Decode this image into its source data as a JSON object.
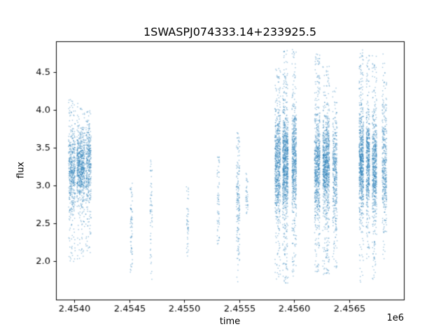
{
  "chart_data": {
    "type": "scatter",
    "title": "1SWASPJ074333.14+233925.5",
    "xlabel": "time",
    "ylabel": "flux",
    "x_offset_text": "1e6",
    "xlim": [
      2.453835,
      2.456997
    ],
    "ylim": [
      1.49,
      4.91
    ],
    "xticks": [
      2.454,
      2.4545,
      2.455,
      2.4555,
      2.456,
      2.4565
    ],
    "xtick_labels": [
      "2.4540",
      "2.4545",
      "2.4550",
      "2.4555",
      "2.4560",
      "2.4565"
    ],
    "yticks": [
      2.0,
      2.5,
      3.0,
      3.5,
      4.0,
      4.5
    ],
    "ytick_labels": [
      "2.0",
      "2.5",
      "3.0",
      "3.5",
      "4.0",
      "4.5"
    ],
    "grid": false,
    "legend": null,
    "marker_color": "#1f77b4",
    "marker_alpha": 0.45,
    "marker_size": 1.4,
    "seed": 7,
    "clusters": [
      {
        "t": 2.45398,
        "w": 6e-05,
        "n": 500,
        "mean": 3.2,
        "sigma": 0.28,
        "fmin": 1.95,
        "fmax": 4.15,
        "tail": 0.18
      },
      {
        "t": 2.45406,
        "w": 7e-05,
        "n": 700,
        "mean": 3.25,
        "sigma": 0.25,
        "fmin": 2.0,
        "fmax": 4.1,
        "tail": 0.15
      },
      {
        "t": 2.45413,
        "w": 5e-05,
        "n": 400,
        "mean": 3.3,
        "sigma": 0.28,
        "fmin": 2.1,
        "fmax": 4.0,
        "tail": 0.15
      },
      {
        "t": 2.45452,
        "w": 2e-05,
        "n": 70,
        "mean": 2.5,
        "sigma": 0.3,
        "fmin": 1.85,
        "fmax": 3.05,
        "tail": 0.55
      },
      {
        "t": 2.4547,
        "w": 2e-05,
        "n": 60,
        "mean": 2.6,
        "sigma": 0.35,
        "fmin": 1.75,
        "fmax": 3.4,
        "tail": 0.55
      },
      {
        "t": 2.45503,
        "w": 2e-05,
        "n": 45,
        "mean": 2.55,
        "sigma": 0.25,
        "fmin": 2.05,
        "fmax": 3.0,
        "tail": 0.55
      },
      {
        "t": 2.45531,
        "w": 2e-05,
        "n": 60,
        "mean": 2.8,
        "sigma": 0.3,
        "fmin": 2.2,
        "fmax": 3.4,
        "tail": 0.5
      },
      {
        "t": 2.45549,
        "w": 3e-05,
        "n": 170,
        "mean": 2.8,
        "sigma": 0.35,
        "fmin": 1.7,
        "fmax": 3.7,
        "tail": 0.35
      },
      {
        "t": 2.45557,
        "w": 2e-05,
        "n": 40,
        "mean": 2.85,
        "sigma": 0.15,
        "fmin": 2.55,
        "fmax": 3.2,
        "tail": 0.4
      },
      {
        "t": 2.45585,
        "w": 5e-05,
        "n": 700,
        "mean": 3.3,
        "sigma": 0.35,
        "fmin": 1.75,
        "fmax": 4.55,
        "tail": 0.25
      },
      {
        "t": 2.45592,
        "w": 5e-05,
        "n": 900,
        "mean": 3.3,
        "sigma": 0.33,
        "fmin": 1.7,
        "fmax": 4.8,
        "tail": 0.25
      },
      {
        "t": 2.456,
        "w": 4e-05,
        "n": 600,
        "mean": 3.35,
        "sigma": 0.35,
        "fmin": 1.8,
        "fmax": 4.8,
        "tail": 0.25
      },
      {
        "t": 2.45621,
        "w": 5e-05,
        "n": 700,
        "mean": 3.25,
        "sigma": 0.33,
        "fmin": 1.85,
        "fmax": 4.75,
        "tail": 0.25
      },
      {
        "t": 2.45629,
        "w": 6e-05,
        "n": 900,
        "mean": 3.3,
        "sigma": 0.3,
        "fmin": 1.8,
        "fmax": 4.6,
        "tail": 0.22
      },
      {
        "t": 2.45637,
        "w": 4e-05,
        "n": 400,
        "mean": 3.2,
        "sigma": 0.35,
        "fmin": 1.9,
        "fmax": 4.3,
        "tail": 0.3
      },
      {
        "t": 2.45661,
        "w": 4e-05,
        "n": 700,
        "mean": 3.3,
        "sigma": 0.33,
        "fmin": 1.7,
        "fmax": 4.8,
        "tail": 0.25
      },
      {
        "t": 2.45667,
        "w": 3e-05,
        "n": 500,
        "mean": 3.3,
        "sigma": 0.3,
        "fmin": 2.0,
        "fmax": 4.75,
        "tail": 0.25
      },
      {
        "t": 2.45673,
        "w": 4e-05,
        "n": 600,
        "mean": 3.25,
        "sigma": 0.35,
        "fmin": 1.75,
        "fmax": 4.75,
        "tail": 0.25
      },
      {
        "t": 2.45682,
        "w": 4e-05,
        "n": 400,
        "mean": 3.25,
        "sigma": 0.35,
        "fmin": 2.0,
        "fmax": 4.75,
        "tail": 0.28
      }
    ]
  }
}
